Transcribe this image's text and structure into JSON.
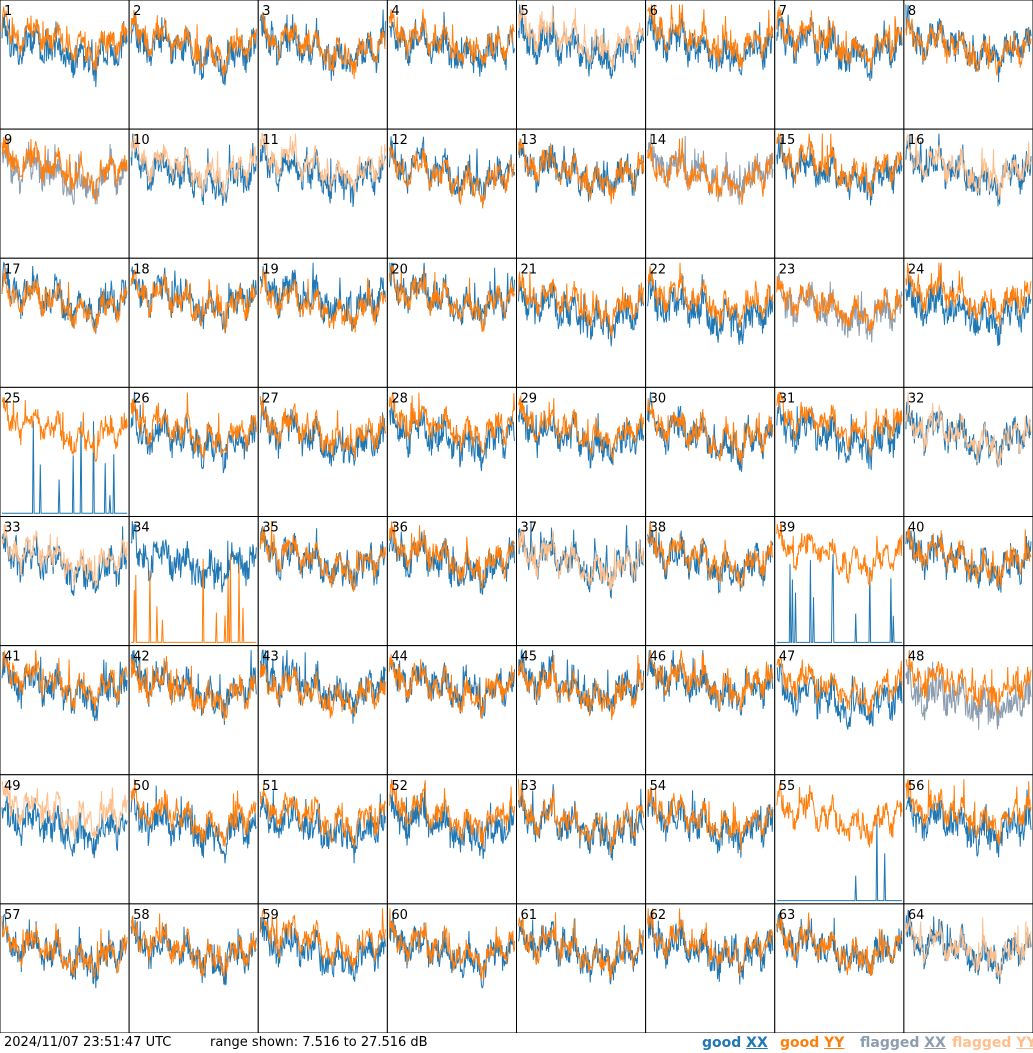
{
  "chart_data": {
    "type": "line",
    "panel_count": 64,
    "panel_labels": [
      "1",
      "2",
      "3",
      "4",
      "5",
      "6",
      "7",
      "8",
      "9",
      "10",
      "11",
      "12",
      "13",
      "14",
      "15",
      "16",
      "17",
      "18",
      "19",
      "20",
      "21",
      "22",
      "23",
      "24",
      "25",
      "26",
      "27",
      "28",
      "29",
      "30",
      "31",
      "32",
      "33",
      "34",
      "35",
      "36",
      "37",
      "38",
      "39",
      "40",
      "41",
      "42",
      "43",
      "44",
      "45",
      "46",
      "47",
      "48",
      "49",
      "50",
      "51",
      "52",
      "53",
      "54",
      "55",
      "56",
      "57",
      "58",
      "59",
      "60",
      "61",
      "62",
      "63",
      "64"
    ],
    "grid": "8x8",
    "ylim_db": [
      7.516,
      27.516
    ],
    "series": [
      {
        "name": "good XX",
        "color": "#1f77b4"
      },
      {
        "name": "good YY",
        "color": "#ff7f0e"
      },
      {
        "name": "flagged XX",
        "color": "#8c9db0"
      },
      {
        "name": "flagged YY",
        "color": "#ffbf8c"
      }
    ],
    "panel_status": {
      "flagged_xx": [
        9,
        14,
        23,
        48
      ],
      "flagged_yy": [
        5,
        10,
        11,
        16,
        32,
        33,
        37,
        49,
        64
      ],
      "dropout_xx": [
        25,
        39,
        55
      ],
      "dropout_yy": [
        34
      ]
    }
  },
  "footer": {
    "timestamp": "2024/11/07 23:51:47 UTC",
    "range_text": "range shown: 7.516 to 27.516 dB",
    "legend": [
      {
        "word": "good",
        "pol": "XX",
        "color": "#1f77b4"
      },
      {
        "word": "good",
        "pol": "YY",
        "color": "#ff7f0e"
      },
      {
        "word": "flagged",
        "pol": "XX",
        "color": "#8c9db0"
      },
      {
        "word": "flagged",
        "pol": "YY",
        "color": "#ffbf8c"
      }
    ]
  }
}
